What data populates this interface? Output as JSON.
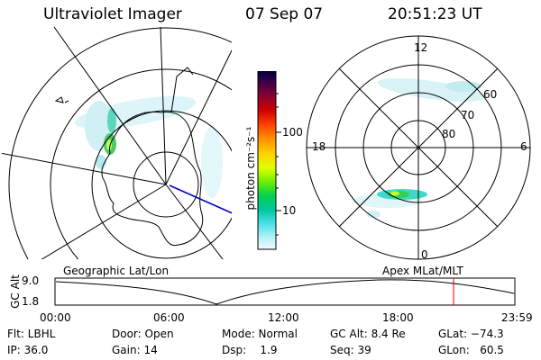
{
  "header": {
    "instrument": "Ultraviolet Imager",
    "date": "07 Sep 07",
    "time": "20:51:23 UT"
  },
  "colorbar": {
    "unit_label": "photon cm⁻²s⁻¹",
    "ticks": [
      "100",
      "10"
    ],
    "colors": [
      "#000040",
      "#3a004a",
      "#7a0030",
      "#b00010",
      "#e00000",
      "#ff3000",
      "#ff7a00",
      "#ffb000",
      "#ffe000",
      "#e6ff00",
      "#9cff00",
      "#30e000",
      "#00d060",
      "#00d0a0",
      "#40e0e0",
      "#a0f0f0",
      "#e0f8ff"
    ]
  },
  "polar_plot": {
    "mlt_labels": [
      "12",
      "18",
      "6",
      "0"
    ],
    "lat_labels": [
      "60",
      "70",
      "80"
    ]
  },
  "timeline": {
    "left_label": "Geographic Lat/Lon",
    "right_label": "Apex MLat/MLT",
    "y_axis_label": "GC Alt",
    "y_ticks": [
      "9.0",
      "1.8"
    ],
    "x_ticks": [
      "00:00",
      "06:00",
      "12:00",
      "18:00",
      "23:59"
    ],
    "cursor_color": "#e00000"
  },
  "footer": {
    "row1": [
      "Flt: LBHL",
      "Door: Open",
      "Mode: Normal",
      "GC Alt: 8.4 Re",
      "GLat: −74.3"
    ],
    "row2": [
      "IP: 36.0",
      "Gain: 14",
      "Dsp:    1.9",
      "Seq: 39",
      "GLon:   60.5"
    ]
  }
}
